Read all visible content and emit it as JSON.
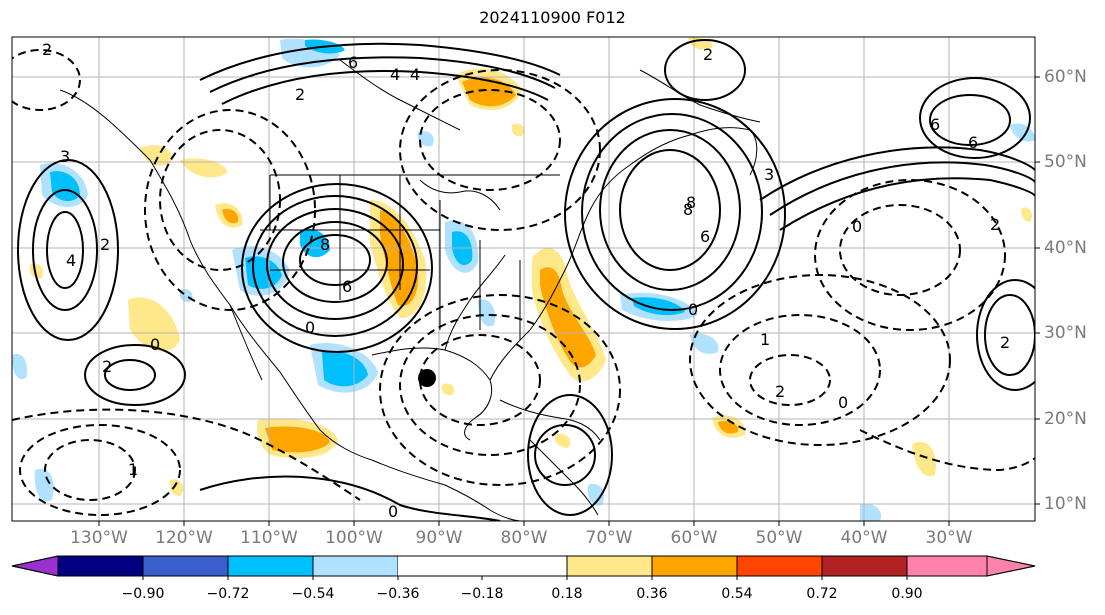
{
  "title": "2024110900 F012",
  "lon_labels": [
    "130°W",
    "120°W",
    "110°W",
    "100°W",
    "90°W",
    "80°W",
    "70°W",
    "60°W",
    "50°W",
    "40°W",
    "30°W"
  ],
  "lat_labels": [
    "60°N",
    "50°N",
    "40°N",
    "30°N",
    "20°N",
    "10°N"
  ],
  "colorbar": {
    "tick_labels": [
      "−0.90",
      "−0.72",
      "−0.54",
      "−0.36",
      "−0.18",
      "0.18",
      "0.36",
      "0.54",
      "0.72",
      "0.90"
    ],
    "colors": [
      "#9b30d0",
      "#000080",
      "#3a5fcd",
      "#00bfff",
      "#b0e2ff",
      "#ffffff",
      "#ffe88a",
      "#ffa500",
      "#ff4500",
      "#b22222",
      "#ff82ab"
    ]
  },
  "contour_labels": [
    "2",
    "6",
    "4",
    "2",
    "2",
    "6",
    "8",
    "6",
    "8",
    "4",
    "2",
    "6",
    "4",
    "0",
    "3",
    "3",
    "8",
    "6",
    "0",
    "2",
    "0",
    "2",
    "1",
    "2",
    "0",
    "1",
    "0",
    "0",
    "2"
  ],
  "marker": "black-dot"
}
